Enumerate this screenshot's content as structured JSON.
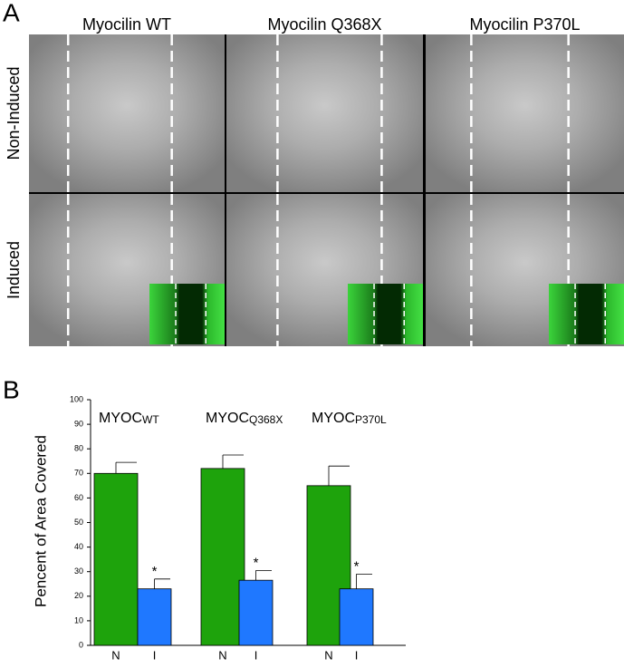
{
  "panel_a": {
    "letter": "A",
    "columns": [
      "Myocilin WT",
      "Myocilin Q368X",
      "Myocilin P370L"
    ],
    "rows": [
      "Non-Induced",
      "Induced"
    ]
  },
  "chart_data": {
    "type": "grouped_bar",
    "panel_letter": "B",
    "ylabel": "Pencent of Area Covered",
    "ylim": [
      0,
      100
    ],
    "yticks": [
      0,
      10,
      20,
      30,
      40,
      50,
      60,
      70,
      80,
      90,
      100
    ],
    "colors": [
      "#1ea30c",
      "#1f78ff"
    ],
    "groups": [
      {
        "name": "MYOC",
        "subscript": "WT",
        "categories": [
          "N",
          "I"
        ],
        "values": [
          70,
          23
        ],
        "errors": [
          4.5,
          4
        ],
        "marker": "*"
      },
      {
        "name": "MYOC",
        "subscript": "Q368X",
        "categories": [
          "N",
          "I"
        ],
        "values": [
          72,
          26.5
        ],
        "errors": [
          5.5,
          4
        ],
        "marker": "*"
      },
      {
        "name": "MYOC",
        "subscript": "P370L",
        "categories": [
          "N",
          "I"
        ],
        "values": [
          65,
          23
        ],
        "errors": [
          8,
          6
        ],
        "marker": "*"
      }
    ]
  }
}
